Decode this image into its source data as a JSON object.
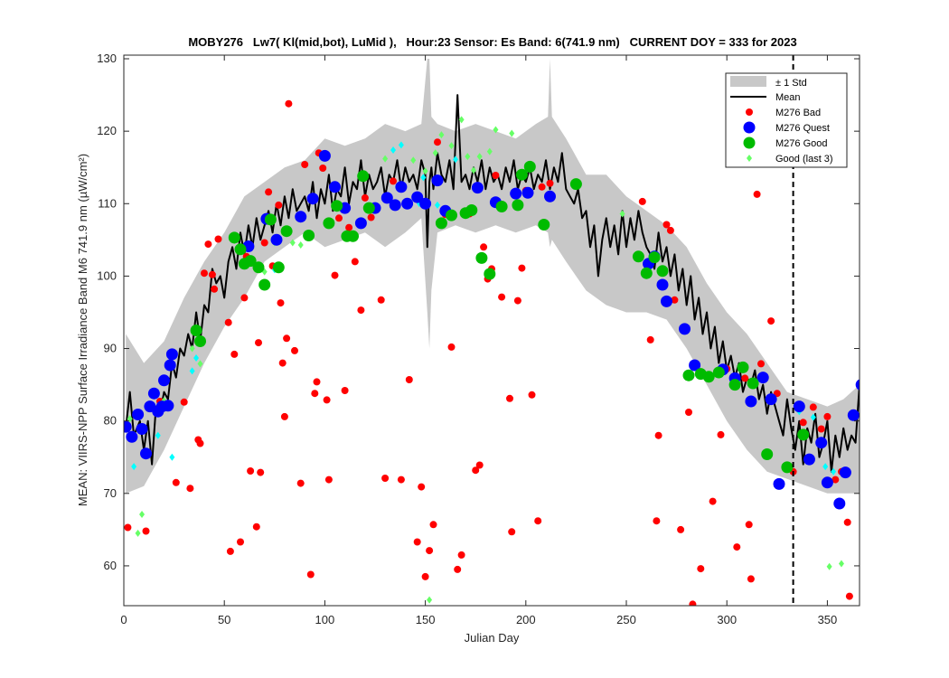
{
  "chart_data": {
    "type": "scatter",
    "title": "MOBY276   Lw7( Kl(mid,bot), LuMid ),   Hour:23 Sensor: Es Band: 6(741.9 nm)   CURRENT DOY = 333 for 2023",
    "xlabel": "Julian Day",
    "ylabel": "MEAN: VIIRS-NPP Surface Irradiance Band M6 741.9 nm (µW/cm²)",
    "xlim": [
      0,
      366
    ],
    "ylim": [
      54.5,
      130.5
    ],
    "xticks": [
      "0",
      "50",
      "100",
      "150",
      "200",
      "250",
      "300",
      "350"
    ],
    "yticks": [
      "60",
      "70",
      "80",
      "90",
      "100",
      "110",
      "120",
      "130"
    ],
    "current_doy": 333,
    "legend_position": "top-right",
    "legend": {
      "std": "± 1 Std",
      "mean": "Mean",
      "bad": "M276 Bad",
      "quest": "M276 Quest",
      "good": "M276 Good",
      "last3": "Good (last 3)"
    },
    "colors": {
      "std_band": "#c8c8c8",
      "mean_line": "#000000",
      "bad": "#ff0000",
      "quest": "#0000ff",
      "good": "#00bb00",
      "last3_green": "#66ff66",
      "last3_cyan": "#00ffff",
      "current_line": "#000000"
    },
    "mean": {
      "x": [
        1,
        3,
        5,
        8,
        10,
        12,
        14,
        16,
        18,
        20,
        22,
        24,
        26,
        28,
        30,
        32,
        34,
        36,
        38,
        40,
        42,
        44,
        46,
        48,
        50,
        52,
        54,
        56,
        58,
        60,
        62,
        64,
        66,
        68,
        70,
        72,
        74,
        76,
        78,
        80,
        82,
        84,
        86,
        88,
        90,
        92,
        94,
        96,
        98,
        100,
        102,
        104,
        106,
        108,
        110,
        112,
        114,
        116,
        118,
        120,
        122,
        124,
        126,
        128,
        130,
        132,
        134,
        136,
        138,
        140,
        142,
        144,
        146,
        148,
        150,
        151,
        152,
        153,
        154,
        156,
        158,
        160,
        162,
        164,
        166,
        168,
        170,
        172,
        174,
        176,
        178,
        180,
        182,
        184,
        186,
        188,
        190,
        192,
        194,
        196,
        198,
        200,
        202,
        204,
        206,
        208,
        210,
        212,
        214,
        216,
        218,
        220,
        222,
        224,
        226,
        228,
        230,
        232,
        234,
        236,
        238,
        240,
        242,
        244,
        246,
        248,
        250,
        252,
        254,
        256,
        258,
        260,
        262,
        264,
        266,
        268,
        270,
        272,
        274,
        276,
        278,
        280,
        282,
        284,
        286,
        288,
        290,
        292,
        294,
        296,
        298,
        300,
        302,
        304,
        306,
        308,
        310,
        312,
        314,
        316,
        318,
        320,
        322,
        324,
        326,
        328,
        330,
        332,
        334,
        336,
        338,
        340,
        342,
        344,
        346,
        348,
        350,
        352,
        354,
        356,
        358,
        360,
        362,
        364,
        366
      ],
      "y": [
        79,
        84,
        78,
        80,
        76,
        80,
        74,
        82,
        81,
        84,
        83,
        88,
        86,
        90,
        89,
        92,
        90,
        95,
        91,
        96,
        95,
        101,
        99,
        100,
        97,
        102,
        104,
        101,
        106,
        103,
        107,
        104,
        108,
        105,
        107,
        109,
        106,
        110,
        107,
        111,
        108,
        112,
        109,
        110,
        111,
        109,
        113,
        108,
        112,
        110,
        114,
        109,
        112,
        111,
        115,
        110,
        113,
        112,
        116,
        111,
        114,
        112,
        113,
        115,
        111,
        114,
        113,
        116,
        112,
        115,
        113,
        114,
        112,
        116,
        114,
        104,
        113,
        115,
        112,
        117,
        114,
        113,
        116,
        112,
        125,
        113,
        114,
        112,
        115,
        113,
        116,
        112,
        115,
        113,
        114,
        112,
        115,
        113,
        116,
        112,
        114,
        113,
        115,
        112,
        114,
        113,
        116,
        112,
        115,
        113,
        117,
        112,
        111,
        110,
        112,
        108,
        109,
        104,
        107,
        100,
        105,
        108,
        104,
        107,
        103,
        109,
        104,
        108,
        105,
        109,
        106,
        104,
        103,
        101,
        106,
        102,
        104,
        100,
        103,
        98,
        101,
        96,
        100,
        94,
        97,
        92,
        95,
        90,
        93,
        88,
        91,
        87,
        89,
        86,
        88,
        84,
        86,
        85,
        87,
        83,
        85,
        81,
        84,
        82,
        80,
        78,
        83,
        79,
        76,
        80,
        74,
        79,
        77,
        81,
        75,
        77,
        80,
        73,
        78,
        75,
        79,
        76,
        78,
        77,
        85
      ]
    },
    "std_band": {
      "x": [
        1,
        10,
        20,
        30,
        40,
        50,
        60,
        70,
        80,
        90,
        100,
        110,
        120,
        130,
        140,
        148,
        151,
        152,
        153,
        156,
        165,
        175,
        185,
        195,
        205,
        211,
        212,
        213,
        220,
        230,
        240,
        250,
        260,
        270,
        280,
        290,
        300,
        310,
        320,
        330,
        340,
        350,
        358,
        366
      ],
      "upper": [
        92,
        88,
        91,
        97,
        102,
        106,
        111,
        113,
        115,
        116,
        119,
        118,
        119,
        121,
        120,
        121,
        130,
        130,
        122,
        121,
        120,
        121,
        120,
        119,
        121,
        122,
        130,
        122,
        119,
        114,
        114,
        111,
        109,
        107,
        104,
        99,
        95,
        92,
        88,
        84,
        83,
        82,
        83,
        85
      ],
      "lower": [
        70,
        71,
        76,
        82,
        88,
        93,
        97,
        102,
        104,
        106,
        104,
        105,
        106,
        104,
        106,
        108,
        95,
        90,
        98,
        106,
        107,
        106,
        107,
        106,
        107,
        106,
        104,
        105,
        102,
        98,
        96,
        95,
        95,
        94,
        90,
        85,
        80,
        76,
        73,
        72,
        71,
        70,
        70,
        70
      ]
    },
    "bad": {
      "x": [
        2,
        11,
        18,
        26,
        30,
        33,
        37,
        38,
        40,
        42,
        44,
        45,
        47,
        52,
        53,
        55,
        58,
        60,
        61,
        63,
        66,
        67,
        68,
        70,
        72,
        74,
        77,
        78,
        79,
        80,
        81,
        82,
        85,
        88,
        90,
        93,
        95,
        96,
        97,
        99,
        101,
        102,
        105,
        107,
        110,
        112,
        115,
        118,
        120,
        123,
        128,
        130,
        134,
        138,
        142,
        146,
        148,
        150,
        152,
        154,
        156,
        158,
        160,
        163,
        166,
        168,
        172,
        175,
        177,
        179,
        181,
        183,
        185,
        188,
        192,
        193,
        196,
        198,
        200,
        203,
        206,
        208,
        212,
        258,
        262,
        265,
        266,
        270,
        272,
        274,
        277,
        281,
        283,
        287,
        293,
        297,
        300,
        305,
        309,
        311,
        312,
        315,
        317,
        322,
        325,
        333,
        338,
        343,
        347,
        350,
        354,
        357,
        360,
        361
      ],
      "y": [
        65.3,
        64.8,
        82.7,
        71.5,
        82.6,
        70.7,
        77.4,
        76.9,
        100.4,
        104.4,
        100.2,
        98.2,
        105.1,
        93.6,
        62.0,
        89.2,
        63.3,
        97.0,
        102.7,
        73.1,
        65.4,
        90.8,
        72.9,
        104.6,
        111.6,
        101.4,
        109.8,
        96.3,
        88.0,
        80.6,
        91.4,
        123.8,
        89.7,
        71.4,
        115.4,
        58.8,
        83.8,
        85.4,
        117.0,
        114.9,
        82.9,
        71.9,
        100.1,
        108.0,
        84.2,
        106.7,
        102.0,
        95.3,
        110.8,
        108.1,
        96.7,
        72.1,
        113.1,
        71.9,
        85.7,
        63.3,
        70.9,
        58.5,
        62.1,
        65.7,
        118.5,
        107.4,
        108.5,
        90.2,
        59.5,
        61.5,
        108.6,
        73.2,
        73.9,
        104.0,
        99.6,
        101.0,
        113.9,
        97.1,
        83.1,
        64.7,
        96.6,
        101.1,
        111.8,
        83.6,
        66.2,
        112.3,
        112.8,
        110.3,
        91.2,
        66.2,
        78.0,
        107.1,
        106.3,
        96.7,
        65.0,
        81.2,
        54.7,
        59.6,
        68.9,
        78.1,
        87.2,
        62.6,
        85.9,
        65.7,
        58.2,
        111.3,
        87.9,
        93.8,
        83.8,
        73.0,
        79.8,
        81.9,
        78.9,
        80.6,
        71.9,
        73.0,
        66.0,
        55.8
      ]
    },
    "quest": {
      "x": [
        1,
        4,
        7,
        9,
        11,
        13,
        15,
        17,
        19,
        20,
        22,
        23,
        24,
        62,
        71,
        76,
        88,
        94,
        100,
        105,
        110,
        118,
        125,
        131,
        135,
        138,
        141,
        146,
        150,
        156,
        160,
        176,
        185,
        195,
        201,
        212,
        261,
        264,
        268,
        270,
        279,
        284,
        298,
        304,
        312,
        318,
        322,
        326,
        336,
        341,
        347,
        350,
        356,
        359,
        363,
        367
      ],
      "y": [
        79.2,
        77.8,
        80.9,
        78.9,
        75.5,
        82.0,
        83.8,
        81.3,
        82.0,
        85.6,
        82.1,
        87.7,
        89.2,
        104.1,
        107.9,
        105.0,
        108.2,
        110.7,
        116.6,
        112.3,
        109.4,
        107.3,
        109.4,
        110.8,
        109.8,
        112.3,
        110.0,
        110.9,
        110.0,
        113.2,
        109.0,
        112.2,
        110.2,
        111.4,
        111.5,
        111.0,
        101.7,
        102.7,
        98.8,
        96.5,
        92.7,
        87.7,
        87.1,
        85.9,
        82.7,
        86.0,
        83.0,
        71.3,
        82.0,
        74.7,
        77.0,
        71.5,
        68.6,
        72.9,
        80.8,
        85.0
      ]
    },
    "good": {
      "x": [
        36,
        38,
        55,
        58,
        60,
        63,
        67,
        70,
        73,
        77,
        81,
        92,
        102,
        106,
        111,
        114,
        119,
        122,
        158,
        163,
        170,
        173,
        178,
        182,
        188,
        196,
        198,
        202,
        209,
        225,
        256,
        260,
        264,
        268,
        281,
        287,
        291,
        296,
        304,
        308,
        313,
        320,
        330,
        338
      ],
      "y": [
        92.5,
        91.0,
        105.3,
        103.7,
        101.7,
        102.1,
        101.2,
        98.8,
        107.8,
        101.2,
        106.2,
        105.6,
        107.3,
        109.7,
        105.5,
        105.5,
        113.8,
        109.4,
        107.3,
        108.4,
        108.7,
        109.1,
        102.5,
        100.3,
        109.6,
        109.8,
        114.0,
        115.1,
        107.1,
        112.7,
        102.7,
        100.4,
        102.6,
        100.7,
        86.3,
        86.5,
        86.1,
        86.7,
        85.0,
        87.4,
        85.2,
        75.4,
        73.6,
        78.1
      ]
    },
    "last3_green": {
      "x": [
        3,
        7,
        9,
        20,
        34,
        38,
        55,
        70,
        75,
        84,
        88,
        130,
        144,
        150,
        152,
        155,
        158,
        163,
        168,
        171,
        174,
        177,
        182,
        185,
        193,
        248,
        351,
        357
      ],
      "y": [
        80.3,
        64.5,
        67.1,
        82.8,
        90.0,
        87.9,
        104.9,
        100.6,
        104.6,
        104.6,
        104.3,
        116.2,
        116.0,
        114.5,
        55.3,
        117.0,
        119.5,
        118.0,
        121.6,
        116.5,
        114.6,
        116.5,
        117.2,
        120.2,
        119.7,
        108.6,
        59.9,
        60.3
      ]
    },
    "last3_cyan": {
      "x": [
        5,
        10,
        17,
        24,
        34,
        36,
        75,
        123,
        134,
        138,
        147,
        149,
        156,
        165,
        172,
        336,
        343,
        349,
        353
      ],
      "y": [
        73.7,
        75.6,
        78.0,
        75.0,
        86.9,
        88.7,
        100.9,
        109.7,
        117.4,
        118.1,
        110.0,
        113.6,
        109.8,
        116.1,
        109.2,
        81.3,
        80.5,
        73.7,
        73.0
      ]
    }
  }
}
